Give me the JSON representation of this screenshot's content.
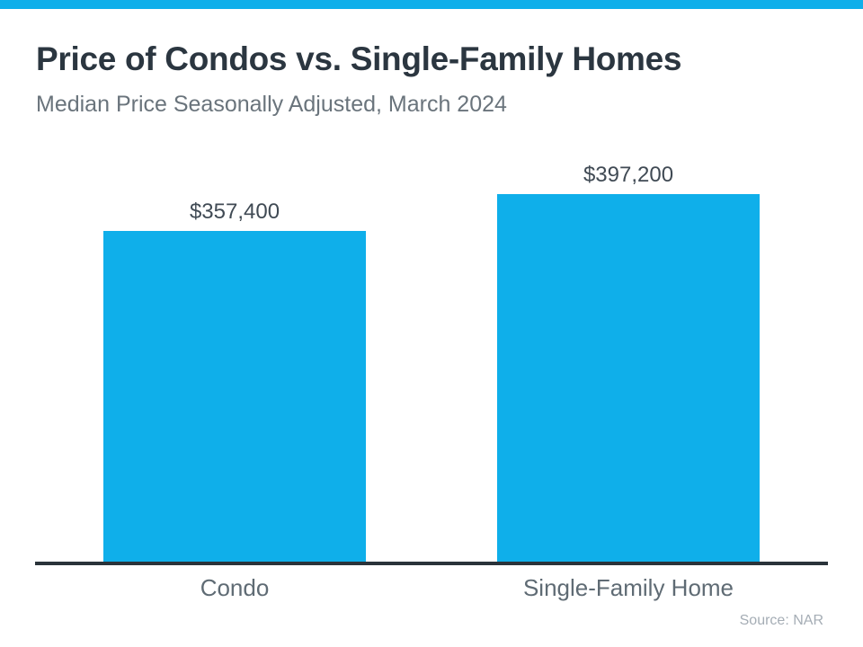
{
  "accent_color": "#0fafea",
  "chart_data": {
    "type": "bar",
    "title": "Price of Condos vs. Single-Family Homes",
    "subtitle": "Median Price Seasonally Adjusted, March 2024",
    "categories": [
      "Condo",
      "Single-Family Home"
    ],
    "values": [
      357400,
      397200
    ],
    "value_labels": [
      "$357,400",
      "$397,200"
    ],
    "bar_color": "#0fafea",
    "xlabel": "",
    "ylabel": "",
    "ylim": [
      0,
      397200
    ],
    "grid": "off",
    "legend": "none",
    "source": "Source: NAR"
  }
}
